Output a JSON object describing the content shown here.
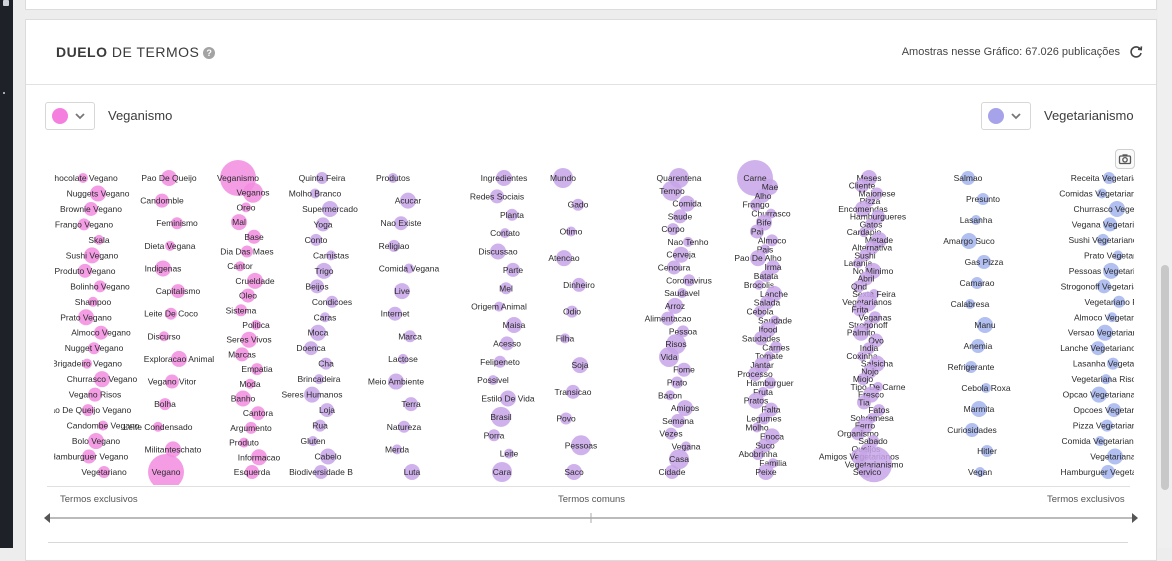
{
  "header": {
    "title_bold": "DUELO",
    "title_rest": " DE TERMOS",
    "samples_text": "Amostras nesse Gráfico: 67.026 publicações"
  },
  "term_left": {
    "label": "Veganismo",
    "color": "#f57fdf"
  },
  "term_right": {
    "label": "Vegetarianismo",
    "color": "#a6a3ea"
  },
  "axis": {
    "left_label": "Termos exclusivos",
    "center_label": "Termos comuns",
    "right_label": "Termos exclusivos"
  },
  "chart_data": {
    "type": "scatter",
    "x_axis": {
      "left": "Termos exclusivos",
      "center": "Termos comuns",
      "right": "Termos exclusivos"
    },
    "colors": {
      "left": "#f28ce0",
      "middle": "#c7a4e8",
      "right": "#a3b4ee"
    },
    "columns": [
      {
        "terms": [
          "Chocolate Vegano",
          "Nuggets Vegano",
          "Brownie Vegano",
          "Frango Vegano",
          "Skala",
          "Sushi Vegano",
          "Produto Vegano",
          "Bolinho Vegano",
          "Shampoo",
          "Prato Vegano",
          "Almoco Vegano",
          "Nugget Vegano",
          "Brigadeiro Vegano",
          "Churrasco Vegano",
          "Vegano Risos",
          "Pao De Queijo Vegano",
          "Candombe Vegano",
          "Bolo Vegano",
          "Hamburguer Vegano",
          "Vegetariano"
        ]
      },
      {
        "terms": [
          "Pao De Queijo",
          "Candomble",
          "Feminismo",
          "Dieta Vegana",
          "Indigenas",
          "Capitalismo",
          "Leite De Coco",
          "Discurso",
          "Exploracao Animal",
          "Vegano Vitor",
          "Bolha",
          "Leite Condensado",
          "Militanteschato",
          "Vegano"
        ]
      },
      {
        "terms": [
          "Veganismo",
          "Veganos",
          "Oreo",
          "Mal",
          "Base",
          "Dia Das Maes",
          "Cantor",
          "Crueldade",
          "Oleo",
          "Sistema",
          "Politica",
          "Seres Vivos",
          "Marcas",
          "Empatia",
          "Moda",
          "Banho",
          "Cantora",
          "Argumento",
          "Produto",
          "Informacao",
          "Esquerda"
        ]
      },
      {
        "terms": [
          "Quinta Feira",
          "Molho Branco",
          "Supermercado",
          "Yoga",
          "Conto",
          "Carnistas",
          "Trigo",
          "Beijos",
          "Condicoes",
          "Caras",
          "Moca",
          "Doenca",
          "Cha",
          "Brincadeira",
          "Seres Humanos",
          "Loja",
          "Rua",
          "Gluten",
          "Cabelo",
          "Biodiversidade B"
        ]
      },
      {
        "terms": [
          "Produtos",
          "Acucar",
          "Nao Existe",
          "Religiao",
          "Comida Vegana",
          "Live",
          "Internet",
          "Marca",
          "Lactose",
          "Meio Ambiente",
          "Terra",
          "Natureza",
          "Merda",
          "Luta"
        ]
      },
      {
        "terms": [
          "Ingredientes",
          "Redes Sociais",
          "Planta",
          "Contato",
          "Discussao",
          "Parte",
          "Mel",
          "Origem Animal",
          "Maisa",
          "Acesso",
          "Felipeneto",
          "Possivel",
          "Estilo De Vida",
          "Brasil",
          "Porra",
          "Leite",
          "Cara"
        ]
      },
      {
        "terms": [
          "Mundo",
          "Gado",
          "Otimo",
          "Atencao",
          "Dinheiro",
          "Odio",
          "Filha",
          "Soja",
          "Transicao",
          "Povo",
          "Pessoas",
          "Saco"
        ]
      },
      {
        "terms": [
          "Quarentena",
          "Tempo",
          "Comida",
          "Saude",
          "Corpo",
          "Nao Tenho",
          "Cerveja",
          "Cenoura",
          "Coronavirus",
          "Saudavel",
          "Arroz",
          "Alimentacao",
          "Pessoa",
          "Risos",
          "Vida",
          "Fome",
          "Prato",
          "Bacon",
          "Amigos",
          "Semana",
          "Vezes",
          "Vegana",
          "Casa",
          "Cidade"
        ]
      },
      {
        "terms": [
          "Carne",
          "Mae",
          "Alho",
          "Frango",
          "Churrasco",
          "Bife",
          "Pai",
          "Almoco",
          "Pais",
          "Pao De Alho",
          "Irma",
          "Batata",
          "Brocolis",
          "Lanche",
          "Salada",
          "Cebola",
          "Saudade",
          "Ifood",
          "Saudades",
          "Carnes",
          "Tomate",
          "Jantar",
          "Processo",
          "Hamburguer",
          "Fruta",
          "Pratos",
          "Falta",
          "Legumes",
          "Molho",
          "Epoca",
          "Suco",
          "Abobrinha",
          "Familia",
          "Peixe"
        ]
      },
      {
        "terms": [
          "Meses",
          "Cliente",
          "Maionese",
          "Pizza",
          "Encomendas",
          "Hamburgueres",
          "Gatos",
          "Cardapio",
          "Metade",
          "Alternativa",
          "Sushi",
          "Laranja",
          "No Minimo",
          "Abril",
          "Qnd",
          "Sexta Feira",
          "Vegetarianos",
          "Frita",
          "Veganas",
          "Strogonoff",
          "Palmito",
          "Ovo",
          "India",
          "Coxinha",
          "Salsicha",
          "Nojo",
          "Miojo",
          "Tipo De Carne",
          "Fresco",
          "Tia",
          "Fatos",
          "Sobremesa",
          "Ferro",
          "Organismo",
          "Sabado",
          "Queijos",
          "Amigos Vegetarianos",
          "Vegetarianismo",
          "Servico"
        ]
      },
      {
        "terms": [
          "Salmao",
          "Presunto",
          "Lasanha",
          "Amargo Suco",
          "Gas Pizza",
          "Camarao",
          "Calabresa",
          "Manu",
          "Anemia",
          "Refrigerante",
          "Cebola Roxa",
          "Marmita",
          "Curiosidades",
          "Hitler",
          "Vegan"
        ]
      },
      {
        "terms": [
          "Receita Vegetariana",
          "Comidas Vegetarianas",
          "Churrasco Vegetariano",
          "Vegana Vegetariana",
          "Sushi Vegetariano",
          "Prato Vegetariano",
          "Pessoas Vegetarianas",
          "Strogonoff Vegetariano",
          "Vegetariano Risos",
          "Almoco Vegetariano",
          "Versao Vegetariana",
          "Lanche Vegetariano",
          "Lasanha Vegetariana",
          "Vegetariana Risos",
          "Opcao Vegetariana",
          "Opcoes Vegetarianas",
          "Pizza Vegetariana",
          "Comida Vegetariana",
          "Vegetarianas",
          "Hamburguer Vegetariano"
        ]
      }
    ]
  }
}
